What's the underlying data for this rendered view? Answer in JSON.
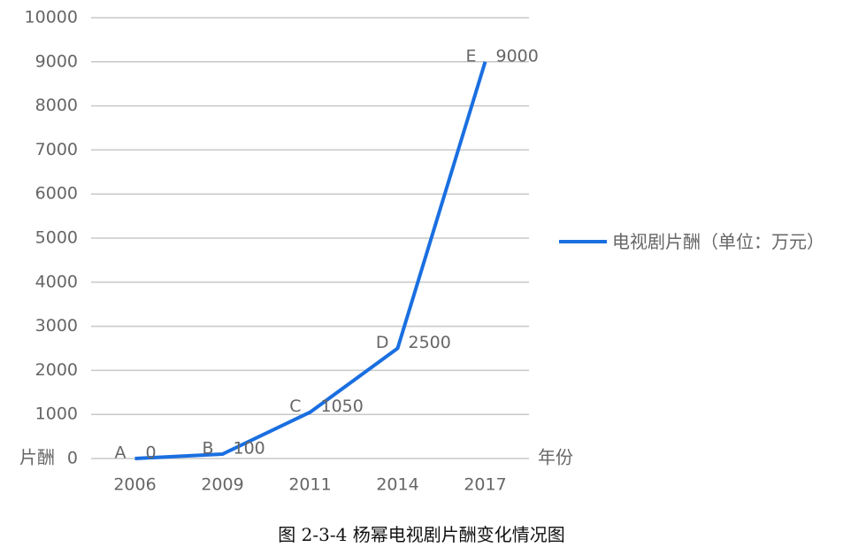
{
  "chart_data": {
    "type": "line",
    "caption": "图 2-3-4 杨幂电视剧片酬变化情况图",
    "y_label": "片酬",
    "x_label": "年份",
    "categories": [
      "2006",
      "2009",
      "2011",
      "2014",
      "2017"
    ],
    "point_labels": [
      "A",
      "B",
      "C",
      "D",
      "E"
    ],
    "series": [
      {
        "name": "电视剧片酬（单位：万元）",
        "color": "#1a6fe0",
        "values": [
          0,
          100,
          1050,
          2500,
          9000
        ]
      }
    ],
    "ylim": [
      0,
      10000
    ],
    "yticks": [
      0,
      1000,
      2000,
      3000,
      4000,
      5000,
      6000,
      7000,
      8000,
      9000,
      10000
    ],
    "grid": true,
    "legend": "right"
  }
}
